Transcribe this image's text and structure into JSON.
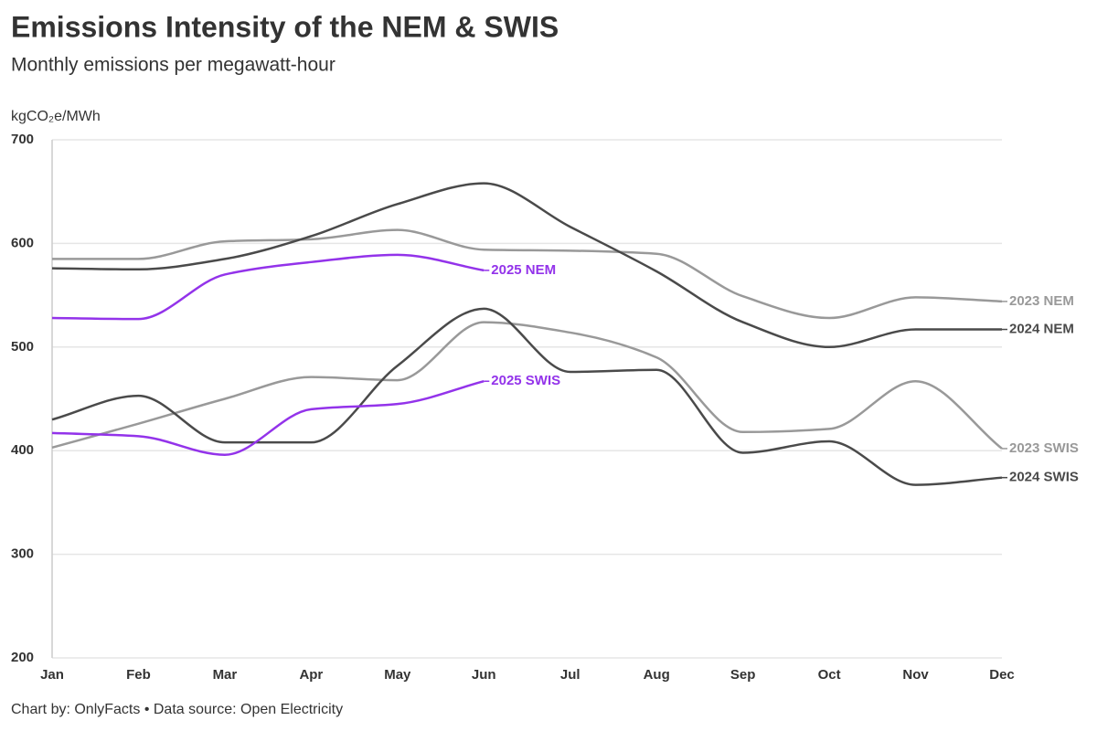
{
  "chart_data": {
    "type": "line",
    "title": "Emissions Intensity of the NEM & SWIS",
    "subtitle": "Monthly emissions per megawatt-hour",
    "y_axis_label": "kgCO₂e/MWh",
    "footer": "Chart by: OnlyFacts • Data source: Open Electricity",
    "categories": [
      "Jan",
      "Feb",
      "Mar",
      "Apr",
      "May",
      "Jun",
      "Jul",
      "Aug",
      "Sep",
      "Oct",
      "Nov",
      "Dec"
    ],
    "ylim": [
      200,
      700
    ],
    "yticks": [
      200,
      300,
      400,
      500,
      600,
      700
    ],
    "grid": true,
    "series": [
      {
        "name": "2023 NEM",
        "color": "#999999",
        "values": [
          585,
          585,
          602,
          604,
          613,
          594,
          593,
          590,
          549,
          528,
          548,
          544
        ]
      },
      {
        "name": "2023 SWIS",
        "color": "#999999",
        "values": [
          403,
          426,
          450,
          471,
          468,
          524,
          514,
          490,
          418,
          421,
          467,
          402
        ]
      },
      {
        "name": "2024 NEM",
        "color": "#4a4a4a",
        "values": [
          576,
          575,
          585,
          607,
          638,
          658,
          616,
          573,
          524,
          500,
          517,
          517
        ]
      },
      {
        "name": "2024 SWIS",
        "color": "#4a4a4a",
        "values": [
          430,
          453,
          408,
          408,
          482,
          537,
          476,
          478,
          398,
          409,
          367,
          374
        ]
      },
      {
        "name": "2025 NEM",
        "color": "#9333ea",
        "values": [
          528,
          527,
          570,
          582,
          589,
          574,
          null,
          null,
          null,
          null,
          null,
          null
        ]
      },
      {
        "name": "2025 SWIS",
        "color": "#9333ea",
        "values": [
          417,
          414,
          396,
          440,
          445,
          467,
          null,
          null,
          null,
          null,
          null,
          null
        ]
      }
    ]
  }
}
